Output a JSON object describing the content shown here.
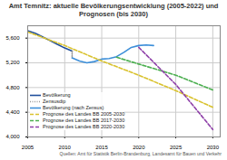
{
  "chart_data": {
    "type": "line",
    "title": "Amt Temnitz: aktuelle Bevölkerungsentwicklung (2005-2022) und Prognosen (bis 2030)",
    "caption": "Quellen: Amt für Statistik Berlin-Brandenburg, Landesamt für Bauen und Verkehr",
    "xlim": [
      2005,
      2031
    ],
    "xticks": [
      2005,
      2010,
      2015,
      2020,
      2025,
      2030
    ],
    "ylim": [
      4000,
      5800
    ],
    "yticks": [
      {
        "value": 4000,
        "label": "4,000"
      },
      {
        "value": 4400,
        "label": "4,400"
      },
      {
        "value": 4800,
        "label": "4,800"
      },
      {
        "value": 5200,
        "label": "5,200"
      },
      {
        "value": 5600,
        "label": "5,600"
      }
    ],
    "grid": true,
    "legend": "bottom-left",
    "series": [
      {
        "name": "Bevölkerung",
        "color": "#1f4e9c",
        "line_style": "solid",
        "x": [
          2005,
          2006,
          2007,
          2008,
          2009,
          2010,
          2011
        ],
        "values": [
          5720,
          5680,
          5620,
          5560,
          5500,
          5440,
          5390
        ]
      },
      {
        "name": "Zensusdip",
        "color": "#999999",
        "line_style": "dotted",
        "x": [
          2011,
          2011
        ],
        "values": [
          5390,
          5280
        ]
      },
      {
        "name": "Bevölkerung (nach Zensus)",
        "color": "#3d8fd9",
        "line_style": "solid",
        "x": [
          2011,
          2012,
          2013,
          2014,
          2015,
          2016,
          2017,
          2018,
          2019,
          2020,
          2021,
          2022
        ],
        "values": [
          5280,
          5230,
          5200,
          5220,
          5260,
          5270,
          5300,
          5370,
          5450,
          5480,
          5490,
          5480
        ]
      },
      {
        "name": "Prognose des Landes BB 2005-2030",
        "color": "#d9c22e",
        "line_style": "dashed",
        "x": [
          2005,
          2010,
          2015,
          2020,
          2025,
          2030
        ],
        "values": [
          5700,
          5480,
          5230,
          5000,
          4750,
          4480
        ]
      },
      {
        "name": "Prognose des Landes BB 2017-2030",
        "color": "#4caf50",
        "line_style": "dashed",
        "x": [
          2017,
          2020,
          2025,
          2030
        ],
        "values": [
          5290,
          5180,
          5000,
          4760
        ]
      },
      {
        "name": "Prognose des Landes BB 2020-2030",
        "color": "#8e3fa8",
        "line_style": "dashed",
        "x": [
          2020,
          2025,
          2030
        ],
        "values": [
          5450,
          4850,
          4120
        ]
      }
    ]
  }
}
